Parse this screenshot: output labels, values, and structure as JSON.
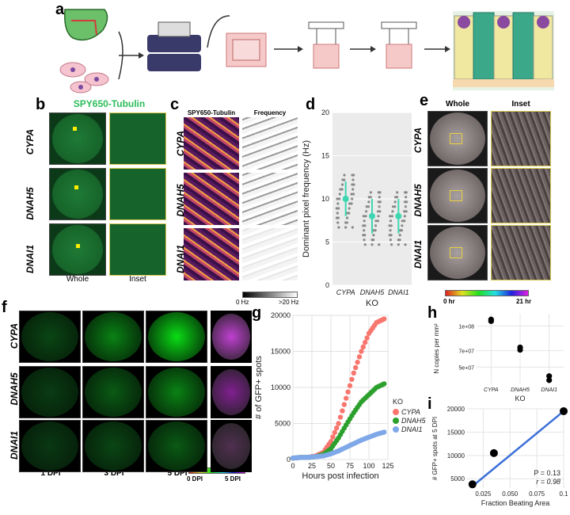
{
  "panels": {
    "a": "a",
    "b": "b",
    "c": "c",
    "d": "d",
    "e": "e",
    "f": "f",
    "g": "g",
    "h": "h",
    "i": "i"
  },
  "genes": [
    "CYPA",
    "DNAH5",
    "DNAI1"
  ],
  "colors": {
    "green": "#2bbd5a",
    "cypa": "#f8766d",
    "dnah5": "#2ca02c",
    "dnai1": "#7fa8e8",
    "fit": "#3a6fd8",
    "teal": "#3ed6b0"
  },
  "b": {
    "title": "SPY650-Tubulin",
    "col_whole": "Whole",
    "col_inset": "Inset"
  },
  "c": {
    "col1": "SPY650-Tubulin",
    "col2": "Frequency",
    "scale_min": "0 Hz",
    "scale_max": ">20 Hz"
  },
  "e": {
    "col_whole": "Whole",
    "col_inset": "Inset",
    "scale_min": "0 hr",
    "scale_max": "21 hr"
  },
  "f": {
    "cols": [
      "1 DPI",
      "3 DPI",
      "5 DPI"
    ],
    "scale_min": "0 DPI",
    "scale_max": "5 DPI"
  },
  "chart_data": [
    {
      "panel": "d",
      "type": "scatter",
      "ylabel": "Dominant pixel frequency (Hz)",
      "xlabel": "KO",
      "categories": [
        "CYPA",
        "DNAH5",
        "DNAI1"
      ],
      "ylim": [
        0,
        20
      ],
      "yticks": [
        0,
        5,
        10,
        15,
        20
      ],
      "medians": [
        10,
        8,
        8
      ]
    },
    {
      "panel": "g",
      "type": "scatter",
      "ylabel": "# of GFP+ spots",
      "xlabel": "Hours post infection",
      "xlim": [
        0,
        125
      ],
      "ylim": [
        0,
        20000
      ],
      "xticks": [
        0,
        25,
        50,
        75,
        100,
        125
      ],
      "yticks": [
        0,
        5000,
        10000,
        15000,
        20000
      ],
      "legend_title": "KO",
      "series": [
        {
          "name": "CYPA",
          "x": [
            0,
            10,
            20,
            30,
            40,
            50,
            60,
            70,
            80,
            90,
            100,
            110,
            120
          ],
          "values": [
            200,
            300,
            300,
            500,
            1000,
            2500,
            5000,
            8500,
            12000,
            15000,
            17500,
            19000,
            19500
          ]
        },
        {
          "name": "DNAH5",
          "x": [
            0,
            10,
            20,
            30,
            40,
            50,
            60,
            70,
            80,
            90,
            100,
            110,
            120
          ],
          "values": [
            200,
            300,
            300,
            400,
            700,
            1500,
            3000,
            4800,
            6500,
            8000,
            9000,
            10000,
            10500
          ]
        },
        {
          "name": "DNAI1",
          "x": [
            0,
            10,
            20,
            30,
            40,
            50,
            60,
            70,
            80,
            90,
            100,
            110,
            120
          ],
          "values": [
            200,
            300,
            300,
            400,
            500,
            800,
            1200,
            1700,
            2200,
            2700,
            3100,
            3500,
            3800
          ]
        }
      ]
    },
    {
      "panel": "h",
      "type": "scatter",
      "ylabel": "N copies per mm²",
      "xlabel": "KO",
      "categories": [
        "CYPA",
        "DNAH5",
        "DNAI1"
      ],
      "yticklabels": [
        "1e+08",
        "7e+07",
        "5e+07"
      ],
      "values": [
        [
          108000000,
          106000000
        ],
        [
          74000000,
          71000000
        ],
        [
          39000000,
          34000000
        ]
      ]
    },
    {
      "panel": "i",
      "type": "scatter",
      "ylabel": "# GFP+ spots at 5 DPI",
      "xlabel": "Fraction Beating Area",
      "xlim": [
        0.01,
        0.1
      ],
      "ylim": [
        3000,
        20000
      ],
      "xticks": [
        0.025,
        0.05,
        0.075,
        0.1
      ],
      "xticklabels": [
        "0.025",
        "0.050",
        "0.075",
        "0.1"
      ],
      "yticks": [
        5000,
        10000,
        15000,
        20000
      ],
      "x": [
        0.015,
        0.035,
        0.1
      ],
      "values": [
        3800,
        10500,
        19500
      ],
      "annotation_p": "P = 0.13",
      "annotation_r": "r = 0.98"
    }
  ]
}
